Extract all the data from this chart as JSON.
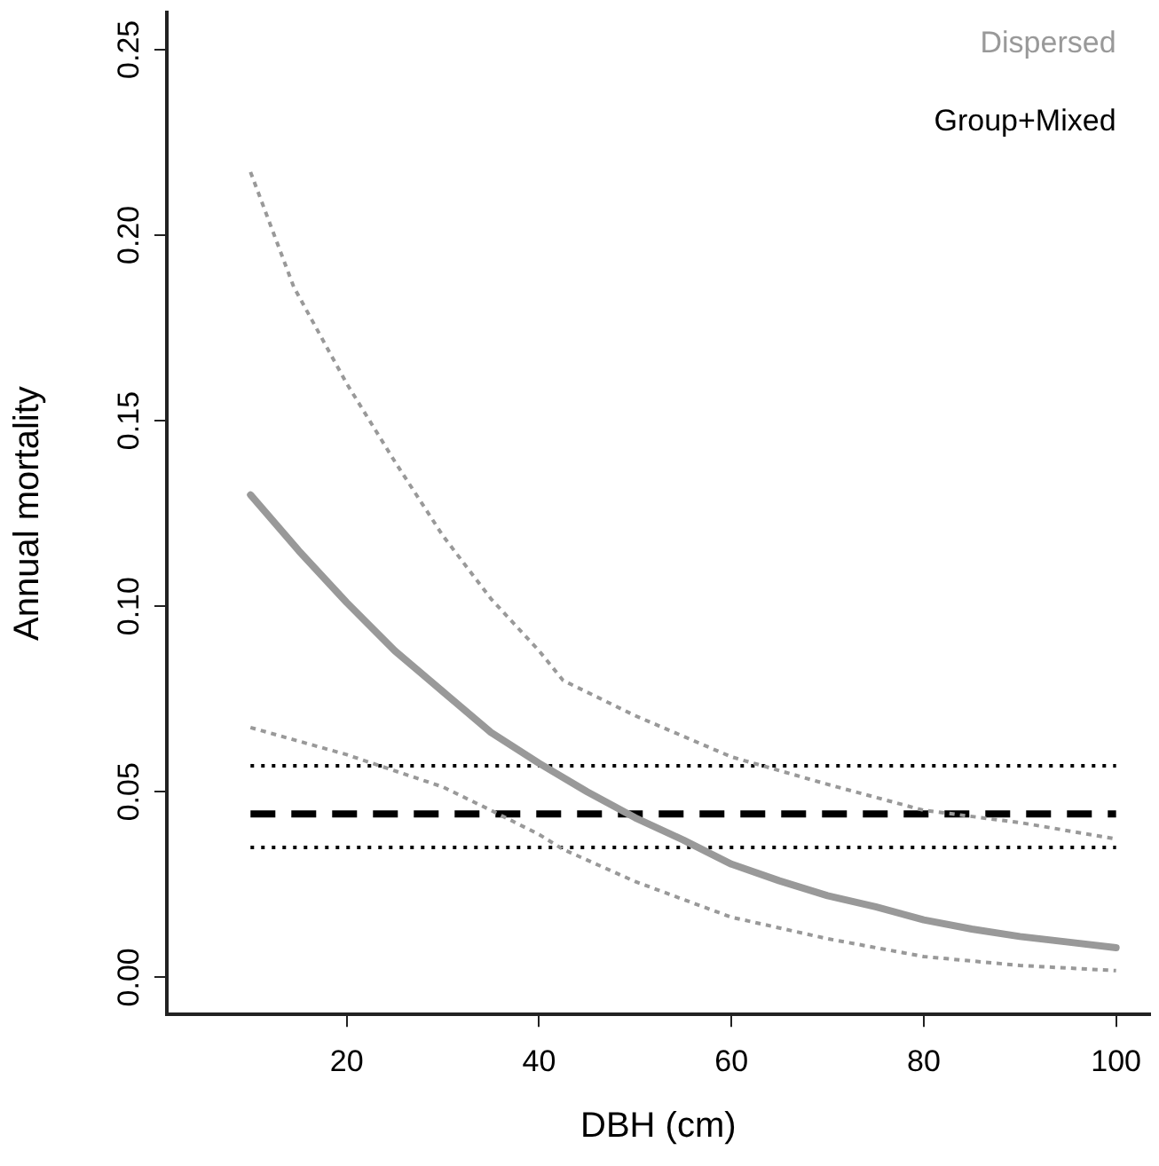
{
  "chart_data": {
    "type": "line",
    "xlabel": "DBH (cm)",
    "ylabel": "Annual mortality",
    "xlim": [
      1.3,
      103.5
    ],
    "xticks": [
      20,
      40,
      60,
      80,
      100
    ],
    "ylim": [
      -0.01,
      0.26
    ],
    "yticks": [
      {
        "value": 0,
        "label": "0.00"
      },
      {
        "value": 0.05,
        "label": "0.05"
      },
      {
        "value": 0.1,
        "label": "0.10"
      },
      {
        "value": 0.15,
        "label": "0.15"
      },
      {
        "value": 0.2,
        "label": "0.20"
      },
      {
        "value": 0.25,
        "label": "0.25"
      }
    ],
    "grid": false,
    "legend": "top right",
    "marker": "none",
    "series": [
      {
        "name": "Dispersed",
        "color": "#999999",
        "line_style": "solid",
        "x": [
          10,
          15,
          20,
          25,
          30,
          35,
          40,
          45,
          50,
          55,
          60,
          65,
          70,
          75,
          80,
          85,
          90,
          95,
          100
        ],
        "values": [
          0.13,
          0.115,
          0.101,
          0.088,
          0.077,
          0.066,
          0.0577,
          0.05,
          0.043,
          0.037,
          0.0305,
          0.026,
          0.022,
          0.019,
          0.0155,
          0.013,
          0.011,
          0.0095,
          0.008
        ]
      },
      {
        "color": "#999999",
        "line_style": "dotted",
        "x": [
          10,
          14.5,
          20,
          25,
          30,
          35,
          40,
          42.5,
          50,
          60,
          70,
          80,
          90,
          100
        ],
        "values": [
          0.217,
          0.186,
          0.16,
          0.139,
          0.119,
          0.102,
          0.088,
          0.08,
          0.0705,
          0.0594,
          0.052,
          0.045,
          0.0417,
          0.0373
        ]
      },
      {
        "color": "#999999",
        "line_style": "dotted",
        "x": [
          10,
          20,
          30,
          35,
          40,
          42.5,
          50,
          60,
          70,
          80,
          90,
          100
        ],
        "values": [
          0.0673,
          0.06,
          0.0513,
          0.045,
          0.0385,
          0.0345,
          0.0258,
          0.0162,
          0.0104,
          0.0056,
          0.0032,
          0.0018
        ]
      },
      {
        "name": "Group+Mixed",
        "color": "#000000",
        "line_style": "dashed",
        "x": [
          10,
          100
        ],
        "values": [
          0.044,
          0.044
        ]
      },
      {
        "color": "#000000",
        "line_style": "dotted",
        "x": [
          10,
          100
        ],
        "values": [
          0.057,
          0.057
        ]
      },
      {
        "color": "#000000",
        "line_style": "dotted",
        "x": [
          10,
          100
        ],
        "values": [
          0.035,
          0.035
        ]
      }
    ]
  }
}
